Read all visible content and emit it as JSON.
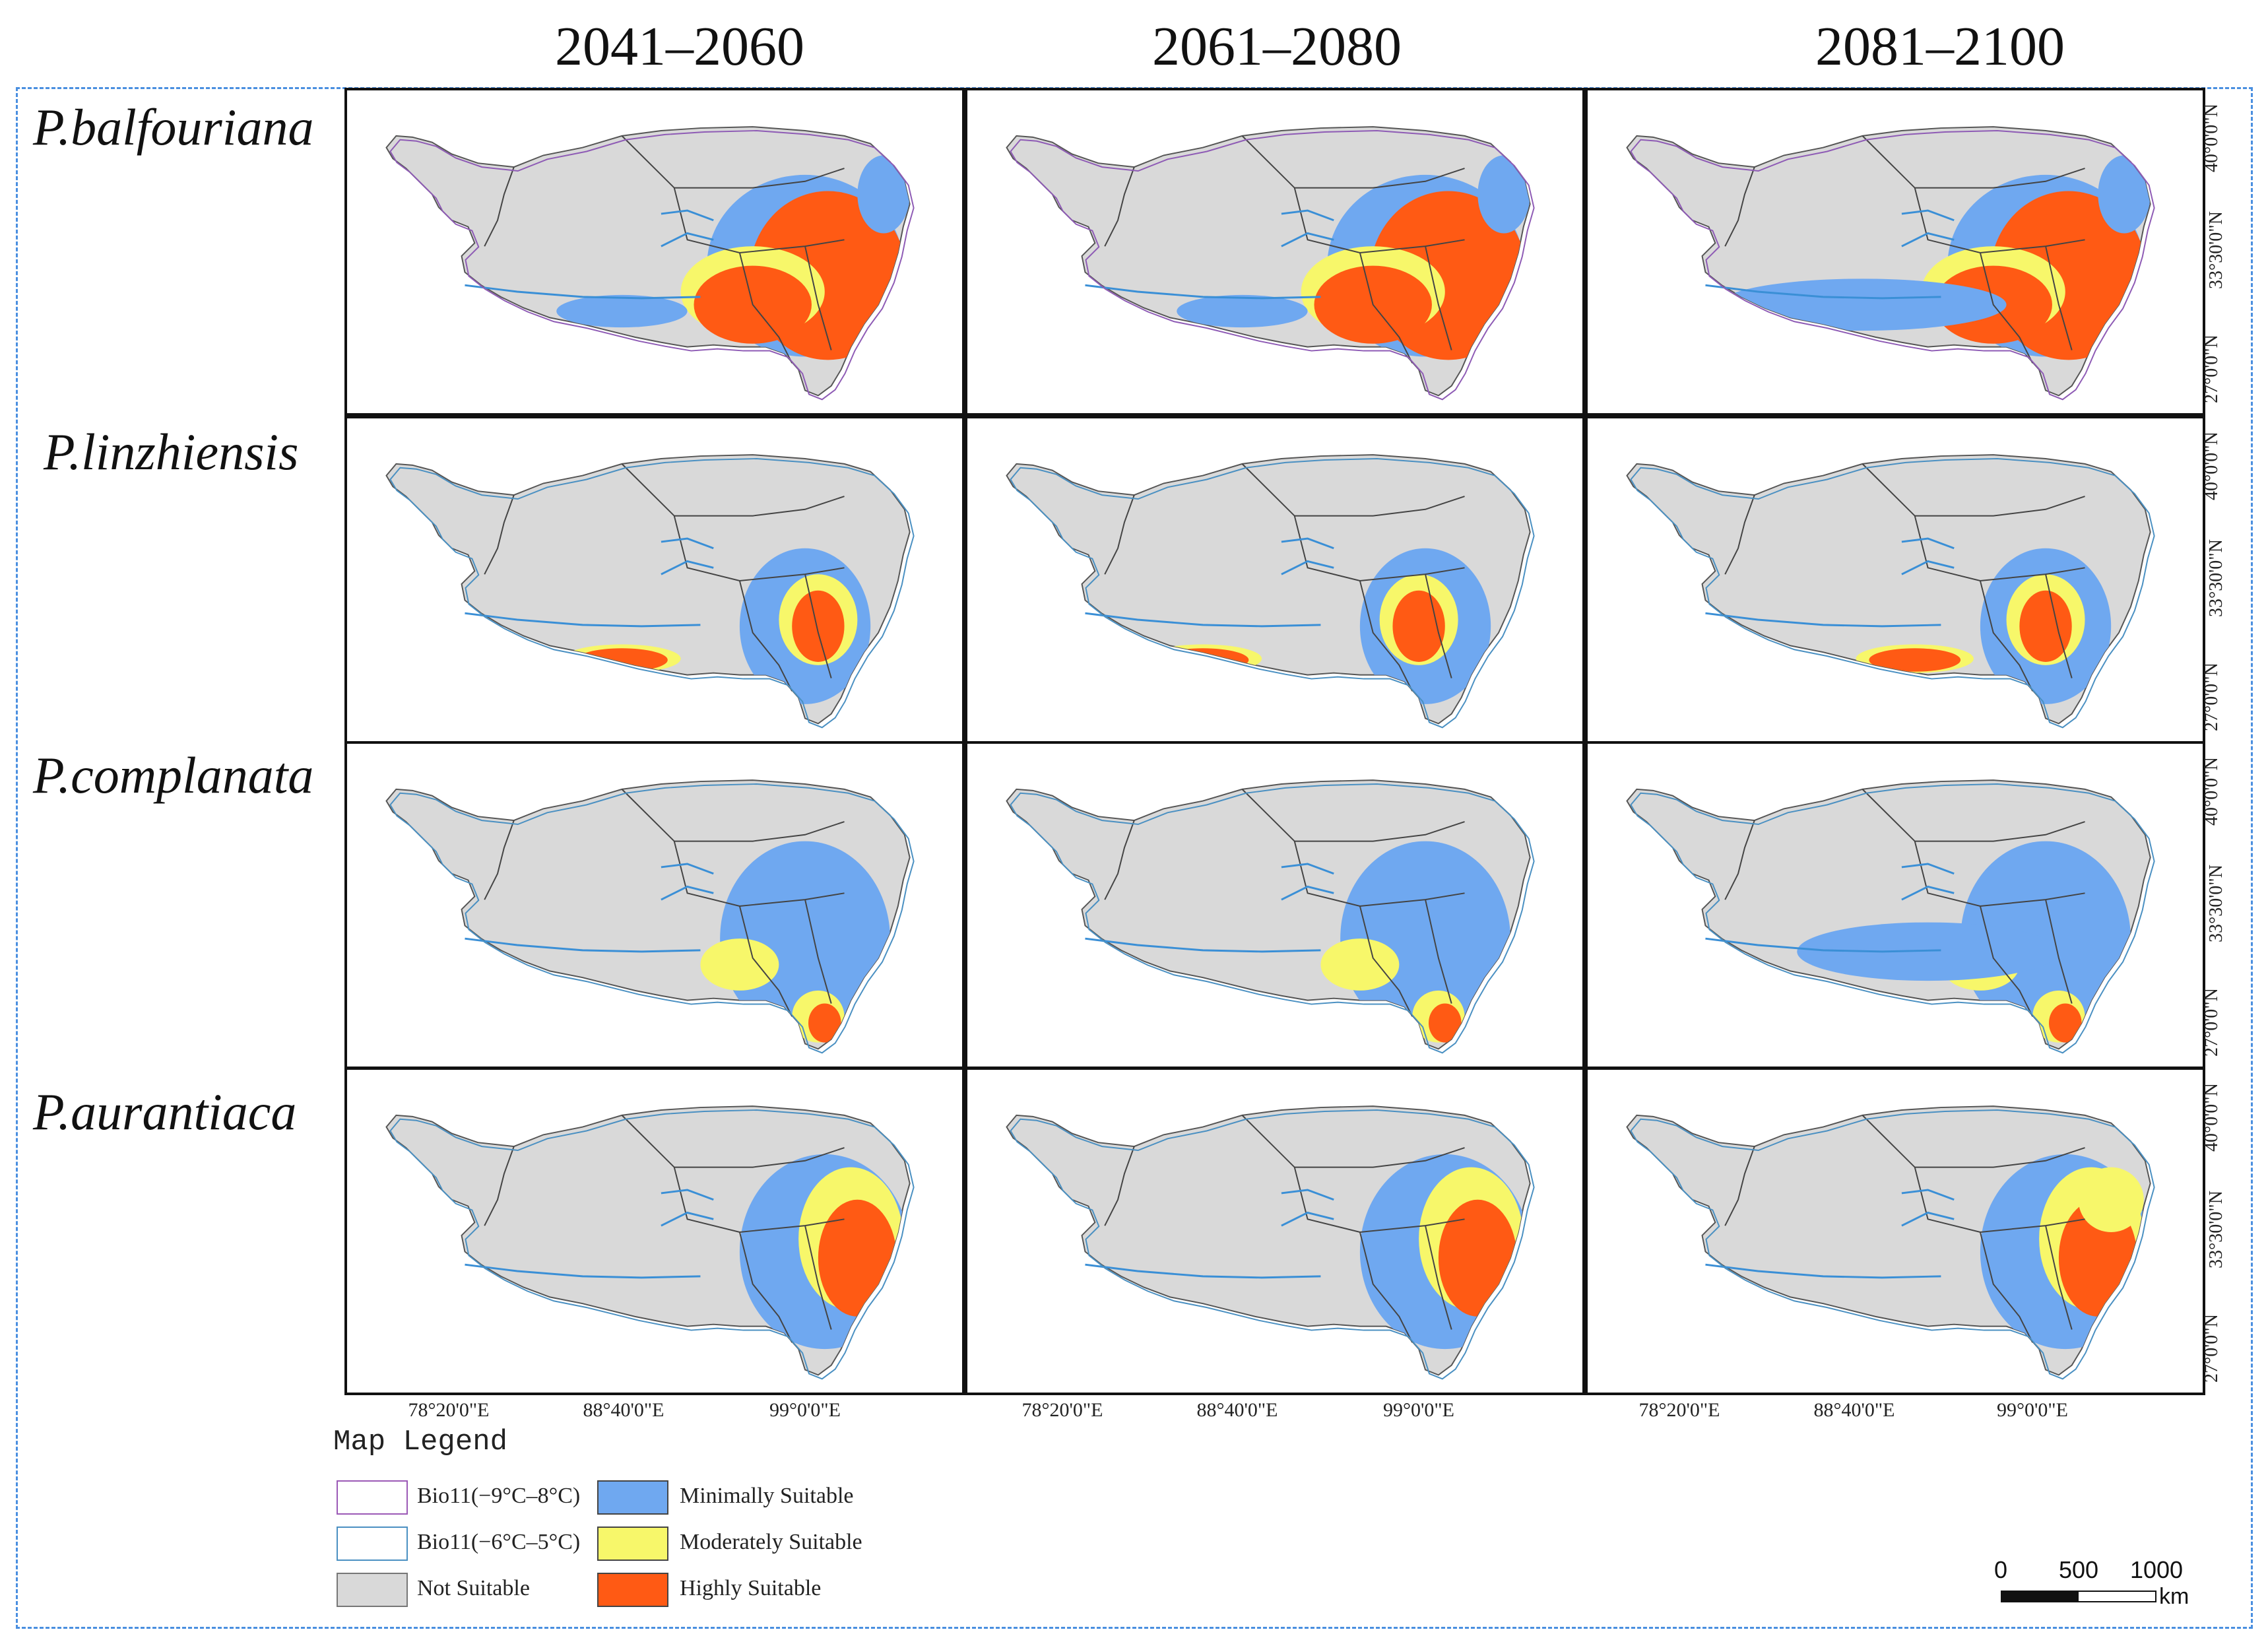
{
  "periods": [
    "2041–2060",
    "2061–2080",
    "2081–2100"
  ],
  "species": [
    "P.balfouriana",
    "P.linzhiensis",
    "P.complanata",
    "P.aurantiaca"
  ],
  "latitude_labels": [
    "40°0'0\"N",
    "33°30'0\"N",
    "27°0'0\"N"
  ],
  "longitude_labels": [
    "78°20'0\"E",
    "88°40'0\"E",
    "99°0'0\"E"
  ],
  "legend": {
    "title": "Map Legend",
    "items": [
      {
        "label": "Bio11(−9°C–8°C)",
        "color": "#ffffff",
        "stroke": "#9b59b6"
      },
      {
        "label": "Bio11(−6°C–5°C)",
        "color": "#ffffff",
        "stroke": "#4a90c2"
      },
      {
        "label": "Not Suitable",
        "color": "#d9d9d9",
        "stroke": "#777777"
      },
      {
        "label": "Minimally Suitable",
        "color": "#6fa8f0",
        "stroke": "#444444"
      },
      {
        "label": "Moderately Suitable",
        "color": "#f7f76a",
        "stroke": "#444444"
      },
      {
        "label": "Highly Suitable",
        "color": "#ff5a14",
        "stroke": "#444444"
      }
    ]
  },
  "scale_bar": {
    "ticks": [
      "0",
      "500",
      "1000"
    ],
    "unit": "km"
  },
  "colors": {
    "not_suitable": "#d9d9d9",
    "minimal": "#6fa8f0",
    "moderate": "#f7f76a",
    "high": "#ff5a14",
    "frame": "#4a8fe0"
  }
}
